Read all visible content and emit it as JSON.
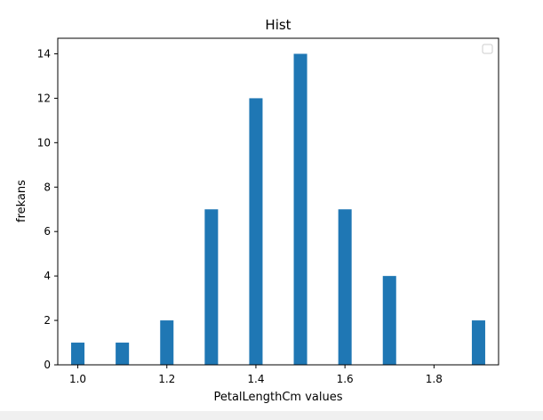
{
  "chart_data": {
    "type": "bar",
    "title": "Hist",
    "xlabel": "PetalLengthCm values",
    "ylabel": "frekans",
    "xlim": [
      0.955,
      1.945
    ],
    "ylim": [
      0,
      14.7
    ],
    "xticks": [
      "1.0",
      "1.2",
      "1.4",
      "1.6",
      "1.8"
    ],
    "yticks": [
      "0",
      "2",
      "4",
      "6",
      "8",
      "10",
      "12",
      "14"
    ],
    "bin_width": 0.03,
    "x": [
      1.0,
      1.1,
      1.2,
      1.3,
      1.4,
      1.5,
      1.6,
      1.7,
      1.9
    ],
    "values": [
      1,
      1,
      2,
      7,
      12,
      14,
      7,
      4,
      2
    ],
    "legend": "top-right (empty)",
    "grid": false,
    "bar_color": "#1f77b4"
  }
}
